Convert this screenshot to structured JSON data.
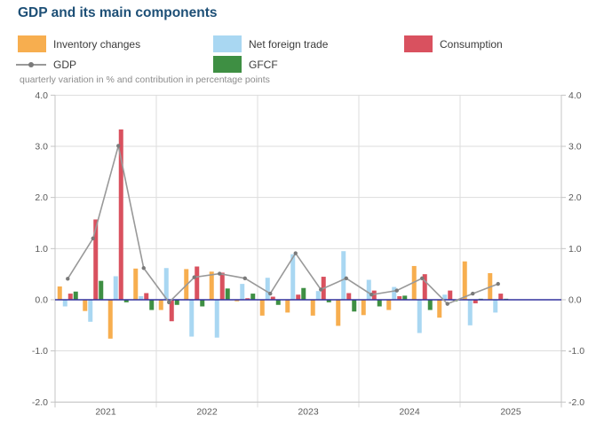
{
  "title": "GDP and its main components",
  "subtitle": "quarterly variation in % and contribution in percentage points",
  "colors": {
    "inventory": "#f7ae4f",
    "net_trade": "#a9d7f2",
    "consumption": "#d9515f",
    "gfcf": "#3e8f43",
    "gdp_line": "#999999",
    "gdp_marker": "#7a7a7a",
    "zero_line": "#32329e",
    "grid": "#dddddd",
    "axis_border": "#c4c4c4",
    "title_color": "#1d4f76",
    "subtitle_color": "#8c8c8c",
    "tick_label_color": "#595959"
  },
  "legend": {
    "items": [
      {
        "id": "inventory",
        "label": "Inventory changes",
        "type": "box"
      },
      {
        "id": "net_trade",
        "label": "Net foreign trade",
        "type": "box"
      },
      {
        "id": "consumption",
        "label": "Consumption",
        "type": "box"
      },
      {
        "id": "gdp",
        "label": "GDP",
        "type": "line"
      },
      {
        "id": "gfcf",
        "label": "GFCF",
        "type": "box"
      }
    ]
  },
  "chart_data": {
    "type": "bar",
    "title": "GDP and its main components",
    "subtitle": "quarterly variation in % and contribution in percentage points",
    "ylim": [
      -2.0,
      4.0
    ],
    "grid": true,
    "legend_position": "top",
    "years": [
      "2021",
      "2022",
      "2023",
      "2024",
      "2025"
    ],
    "quarters": [
      "2021-Q1",
      "2021-Q2",
      "2021-Q3",
      "2021-Q4",
      "2022-Q1",
      "2022-Q2",
      "2022-Q3",
      "2022-Q4",
      "2023-Q1",
      "2023-Q2",
      "2023-Q3",
      "2023-Q4",
      "2024-Q1",
      "2024-Q2",
      "2024-Q3",
      "2024-Q4",
      "2025-Q1",
      "2025-Q2"
    ],
    "yticks": [
      {
        "value": 4,
        "label": "4.0"
      },
      {
        "value": 3,
        "label": "3.0"
      },
      {
        "value": 2,
        "label": "2.0"
      },
      {
        "value": 1,
        "label": "1.0"
      },
      {
        "value": 0,
        "label": "0.0"
      },
      {
        "value": -1,
        "label": "-1.0"
      },
      {
        "value": -2,
        "label": "-2.0"
      }
    ],
    "series": {
      "inventory": [
        0.26,
        -0.22,
        -0.76,
        0.61,
        -0.2,
        0.6,
        0.55,
        -0.03,
        -0.31,
        -0.25,
        -0.31,
        -0.51,
        -0.3,
        -0.2,
        0.66,
        -0.35,
        0.75,
        0.52
      ],
      "net_trade": [
        -0.13,
        -0.43,
        0.46,
        0.07,
        0.62,
        -0.72,
        -0.74,
        0.31,
        0.43,
        0.89,
        0.17,
        0.95,
        0.39,
        0.25,
        -0.65,
        0.1,
        -0.5,
        -0.25
      ],
      "consumption": [
        0.12,
        1.57,
        3.33,
        0.13,
        -0.42,
        0.65,
        0.53,
        0.03,
        0.06,
        0.1,
        0.45,
        0.13,
        0.18,
        0.07,
        0.5,
        0.18,
        -0.07,
        0.12
      ],
      "gfcf": [
        0.16,
        0.37,
        -0.05,
        -0.2,
        -0.1,
        -0.13,
        0.22,
        0.12,
        -0.1,
        0.23,
        -0.05,
        -0.23,
        -0.13,
        0.08,
        -0.2,
        -0.03,
        0.02,
        0.02
      ],
      "gdp": [
        0.41,
        1.2,
        3.01,
        0.62,
        -0.05,
        0.44,
        0.51,
        0.42,
        0.12,
        0.91,
        0.2,
        0.42,
        0.1,
        0.18,
        0.42,
        -0.08,
        0.12,
        0.31
      ]
    }
  }
}
